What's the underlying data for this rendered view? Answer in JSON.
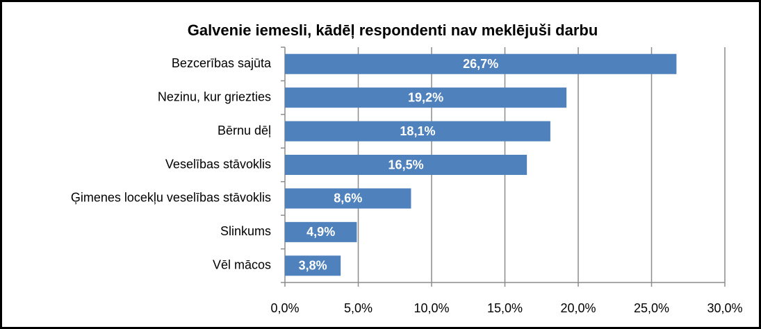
{
  "chart_data": {
    "type": "bar",
    "orientation": "horizontal",
    "title": "Galvenie iemesli, kādēļ respondenti nav meklējuši darbu",
    "categories": [
      "Bezcerības sajūta",
      "Nezinu, kur griezties",
      "Bērnu dēļ",
      "Veselības stāvoklis",
      "Ģimenes locekļu veselības stāvoklis",
      "Slinkums",
      "Vēl mācos"
    ],
    "values": [
      26.7,
      19.2,
      18.1,
      16.5,
      8.6,
      4.9,
      3.8
    ],
    "value_labels": [
      "26,7%",
      "19,2%",
      "18,1%",
      "16,5%",
      "8,6%",
      "4,9%",
      "3,8%"
    ],
    "color": "#4f81bd",
    "xlim": [
      0,
      30
    ],
    "xticks": [
      {
        "value": 0,
        "label": "0,0%"
      },
      {
        "value": 5,
        "label": "5,0%"
      },
      {
        "value": 10,
        "label": "10,0%"
      },
      {
        "value": 15,
        "label": "15,0%"
      },
      {
        "value": 20,
        "label": "20,0%"
      },
      {
        "value": 25,
        "label": "25,0%"
      },
      {
        "value": 30,
        "label": "30,0%"
      }
    ],
    "grid": true
  }
}
